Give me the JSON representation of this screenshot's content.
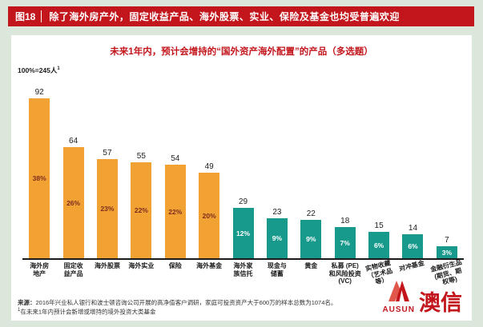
{
  "header": {
    "figure_label": "图18",
    "title": "除了海外房产外，固定收益产品、海外股票、实业、保险及基金也均受普遍欢迎"
  },
  "chart": {
    "title": "未来1年内，预计会增持的“国外资产海外配置”的产品（多选题）",
    "base_label": "100%=245人",
    "base_marker": "1"
  },
  "chart_data": {
    "type": "bar",
    "title": "未来1年内，预计会增持的“国外资产海外配置”的产品（多选题）",
    "sample_note": "100%=245人",
    "xlabel": "",
    "ylabel": "",
    "y_axis_visible": false,
    "grid": false,
    "legend": "none",
    "categories": [
      "海外房地产",
      "固定收益产品",
      "海外股票",
      "海外实业",
      "保险",
      "海外基金",
      "海外家族信托",
      "现金与储蓄",
      "黄金",
      "私募 (PE) 和风险投资 (VC)",
      "实物收藏（艺术品等）",
      "对冲基金",
      "金融衍生品(期货、期权等)"
    ],
    "values": [
      92,
      64,
      57,
      55,
      54,
      49,
      29,
      23,
      22,
      18,
      15,
      14,
      7
    ],
    "percent_labels": [
      "38%",
      "26%",
      "23%",
      "22%",
      "22%",
      "20%",
      "12%",
      "9%",
      "9%",
      "7%",
      "6%",
      "6%",
      "3%"
    ],
    "colors": {
      "orange": "#F2A233",
      "teal": "#17998C"
    },
    "bars": [
      {
        "label_lines": [
          "海外房",
          "地产"
        ],
        "value": 92,
        "pct": "38%",
        "group": "orange",
        "tilt": false
      },
      {
        "label_lines": [
          "固定收",
          "益产品"
        ],
        "value": 64,
        "pct": "26%",
        "group": "orange",
        "tilt": false
      },
      {
        "label_lines": [
          "海外股票"
        ],
        "value": 57,
        "pct": "23%",
        "group": "orange",
        "tilt": false
      },
      {
        "label_lines": [
          "海外实业"
        ],
        "value": 55,
        "pct": "22%",
        "group": "orange",
        "tilt": false
      },
      {
        "label_lines": [
          "保险"
        ],
        "value": 54,
        "pct": "22%",
        "group": "orange",
        "tilt": false
      },
      {
        "label_lines": [
          "海外基金"
        ],
        "value": 49,
        "pct": "20%",
        "group": "orange",
        "tilt": false
      },
      {
        "label_lines": [
          "海外家",
          "族信托"
        ],
        "value": 29,
        "pct": "12%",
        "group": "teal",
        "tilt": false
      },
      {
        "label_lines": [
          "现金与",
          "储蓄"
        ],
        "value": 23,
        "pct": "9%",
        "group": "teal",
        "tilt": false
      },
      {
        "label_lines": [
          "黄金"
        ],
        "value": 22,
        "pct": "9%",
        "group": "teal",
        "tilt": false
      },
      {
        "label_lines": [
          "私募 (PE)",
          "和风险投资",
          "(VC)"
        ],
        "value": 18,
        "pct": "7%",
        "group": "teal",
        "tilt": false
      },
      {
        "label_lines": [
          "实物收藏",
          "（艺术品等）"
        ],
        "value": 15,
        "pct": "6%",
        "group": "teal",
        "tilt": true
      },
      {
        "label_lines": [
          "对冲基金"
        ],
        "value": 14,
        "pct": "6%",
        "group": "teal",
        "tilt": true
      },
      {
        "label_lines": [
          "金融衍生品",
          "(期货、期权等)"
        ],
        "value": 7,
        "pct": "3%",
        "group": "teal",
        "tilt": true
      }
    ]
  },
  "footer": {
    "source_label": "来源：",
    "source_text": "2016年兴业私人银行和波士顿咨询公司开展的高净值客户调研，家庭可投资资产大于600万的样本总数为1074名。",
    "note_marker": "1",
    "note_text": "在未来1年内预计会新增或增持的境外投资大类基金"
  },
  "logo": {
    "latin": "AUSUN",
    "chinese": "澳信"
  },
  "colors": {
    "header_red": "#C3161C",
    "page_bg": "#DCE7DB",
    "bar_orange": "#F2A233",
    "bar_teal": "#17998C"
  }
}
